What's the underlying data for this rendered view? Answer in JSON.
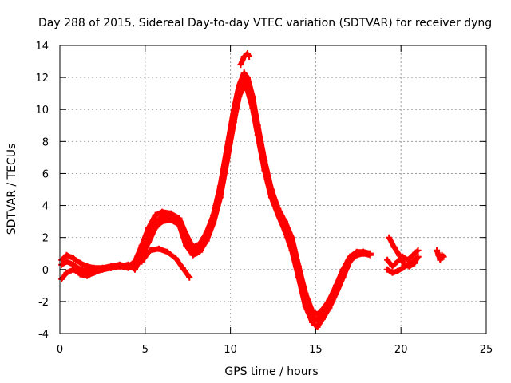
{
  "chart_data": {
    "type": "scatter",
    "title": "Day 288 of 2015, Sidereal Day-to-day VTEC variation (SDTVAR) for receiver dyng",
    "xlabel": "GPS time / hours",
    "ylabel": "SDTVAR / TECUs",
    "xlim": [
      0,
      25
    ],
    "ylim": [
      -4,
      14
    ],
    "xticks": [
      0,
      5,
      10,
      15,
      20,
      25
    ],
    "yticks": [
      -4,
      -2,
      0,
      2,
      4,
      6,
      8,
      10,
      12,
      14
    ],
    "grid": true,
    "marker": "+",
    "series": [
      {
        "name": "trace-1",
        "color": "#ff0000",
        "x": [
          0.1,
          0.4,
          0.8,
          1.2,
          1.6,
          2.0,
          2.5,
          3.0,
          3.5,
          4.0,
          4.4,
          4.8,
          5.2,
          5.6,
          6.0,
          6.5,
          7.0,
          7.4,
          7.8,
          8.2,
          8.6,
          9.0,
          9.4,
          9.8,
          10.2,
          10.5,
          10.8,
          11.0,
          11.3,
          11.6,
          12.0,
          12.4,
          12.8,
          13.2,
          13.6,
          14.0,
          14.4,
          14.8,
          15.1,
          15.4,
          15.8,
          16.2,
          16.6,
          17.0,
          17.4,
          17.8,
          18.2
        ],
        "y": [
          0.6,
          0.9,
          0.7,
          0.4,
          0.2,
          0.1,
          0.1,
          0.2,
          0.3,
          0.2,
          0.5,
          1.5,
          2.6,
          3.4,
          3.6,
          3.5,
          3.2,
          2.2,
          1.4,
          1.6,
          2.3,
          3.4,
          5.2,
          7.6,
          10.0,
          11.5,
          12.3,
          12.0,
          10.8,
          9.0,
          6.8,
          5.0,
          3.8,
          3.0,
          2.0,
          0.2,
          -1.5,
          -2.6,
          -2.8,
          -2.5,
          -1.9,
          -1.0,
          0.0,
          0.8,
          1.1,
          1.1,
          1.0
        ]
      },
      {
        "name": "trace-2",
        "color": "#ff0000",
        "x": [
          0.1,
          0.4,
          0.8,
          1.2,
          1.6,
          2.0,
          2.5,
          3.0,
          3.5,
          4.0,
          4.4,
          4.8,
          5.2,
          5.6,
          6.0,
          6.5,
          7.0,
          7.4,
          7.8,
          8.2,
          8.6,
          9.0,
          9.4,
          9.8,
          10.2,
          10.5,
          10.8,
          11.0,
          11.3,
          11.6,
          12.0,
          12.4,
          12.8,
          13.2,
          13.6,
          14.0,
          14.4,
          14.8,
          15.1,
          15.4,
          15.8,
          16.2,
          16.6,
          17.0,
          17.4,
          17.8,
          18.2
        ],
        "y": [
          -0.6,
          -0.2,
          0.0,
          -0.3,
          -0.4,
          -0.2,
          0.0,
          0.1,
          0.2,
          0.3,
          0.0,
          0.8,
          1.7,
          2.6,
          3.0,
          3.1,
          2.8,
          1.5,
          0.9,
          1.1,
          1.8,
          2.9,
          4.5,
          6.8,
          9.2,
          10.8,
          11.5,
          11.2,
          10.1,
          8.4,
          6.2,
          4.5,
          3.4,
          2.4,
          1.2,
          -0.5,
          -2.3,
          -3.3,
          -3.6,
          -3.1,
          -2.4,
          -1.5,
          -0.5,
          0.5,
          0.9,
          1.0,
          0.9
        ]
      },
      {
        "name": "trace-3",
        "color": "#ff0000",
        "x": [
          0.1,
          0.4,
          0.8,
          1.2,
          1.6,
          2.0,
          2.5,
          3.0,
          3.5,
          4.0,
          4.4,
          4.8,
          5.2,
          5.6,
          6.0,
          6.5,
          7.0,
          7.4,
          7.8,
          8.2,
          8.6,
          9.0,
          9.4,
          9.8,
          10.2,
          10.5,
          10.8,
          11.0,
          11.3,
          11.6,
          12.0,
          12.4,
          12.8,
          13.2,
          13.6,
          14.0,
          14.4,
          14.8,
          15.1,
          15.4,
          15.8,
          16.2,
          16.6,
          17.0,
          17.4,
          17.8,
          18.2
        ],
        "y": [
          0.3,
          0.5,
          0.3,
          0.0,
          -0.1,
          -0.1,
          0.0,
          0.1,
          0.2,
          0.1,
          0.2,
          1.2,
          2.2,
          3.0,
          3.3,
          3.3,
          2.9,
          1.8,
          1.1,
          1.3,
          2.0,
          3.2,
          5.0,
          7.4,
          9.8,
          11.2,
          12.0,
          11.6,
          10.4,
          8.7,
          6.5,
          4.7,
          3.6,
          2.7,
          1.6,
          -0.1,
          -1.9,
          -2.9,
          -3.2,
          -2.8,
          -2.1,
          -1.2,
          -0.2,
          0.6,
          1.0,
          1.1,
          1.0
        ]
      },
      {
        "name": "trace-4",
        "color": "#ff0000",
        "x": [
          4.8,
          5.3,
          5.8,
          6.3,
          6.8,
          7.2,
          7.6
        ],
        "y": [
          0.5,
          1.2,
          1.3,
          1.1,
          0.7,
          0.1,
          -0.5
        ]
      },
      {
        "name": "peak-tip",
        "color": "#ff0000",
        "x": [
          10.6,
          10.8,
          11.0,
          11.1
        ],
        "y": [
          12.8,
          13.3,
          13.5,
          13.3
        ]
      },
      {
        "name": "trace-5",
        "color": "#ff0000",
        "x": [
          19.2,
          19.5,
          19.8,
          20.1,
          20.4,
          20.7,
          21.0
        ],
        "y": [
          0.6,
          0.2,
          0.5,
          0.8,
          0.6,
          0.9,
          1.2
        ]
      },
      {
        "name": "trace-6",
        "color": "#ff0000",
        "x": [
          19.3,
          19.6,
          19.9,
          20.2,
          20.5,
          20.8,
          21.0
        ],
        "y": [
          2.0,
          1.4,
          0.9,
          0.3,
          0.2,
          0.4,
          0.8
        ]
      },
      {
        "name": "trace-7",
        "color": "#ff0000",
        "x": [
          19.2,
          19.5,
          19.8,
          20.1,
          20.4,
          20.7,
          21.0
        ],
        "y": [
          0.0,
          -0.2,
          -0.1,
          0.1,
          0.3,
          0.5,
          0.8
        ]
      },
      {
        "name": "trace-8",
        "color": "#ff0000",
        "x": [
          22.1,
          22.2,
          22.3,
          22.4,
          22.5
        ],
        "y": [
          1.2,
          0.9,
          0.6,
          0.9,
          0.8
        ]
      }
    ]
  }
}
